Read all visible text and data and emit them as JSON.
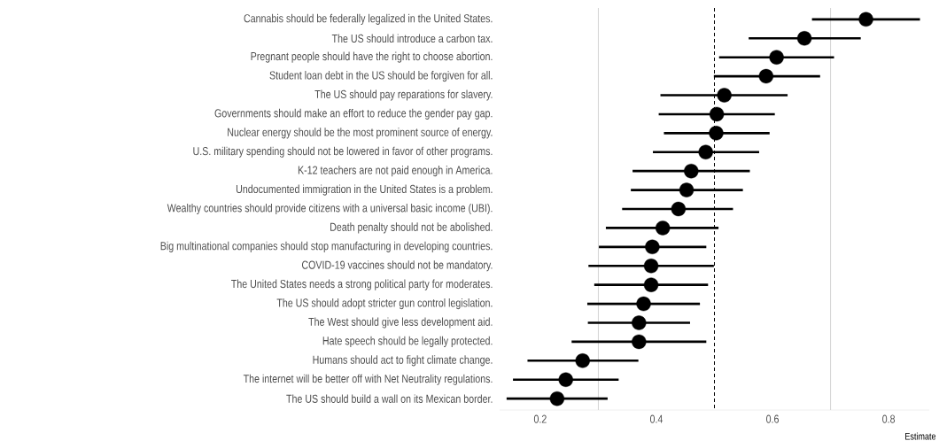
{
  "chart_data": {
    "type": "scatter",
    "orientation": "horizontal",
    "xlabel": "Estimate",
    "categories": [
      "Cannabis should be federally legalized in the United States.",
      "The US should introduce a carbon tax.",
      "Pregnant people should have the right to choose abortion.",
      "Student loan debt in the US should be forgiven for all.",
      "The US should pay reparations for slavery.",
      "Governments should make an effort to reduce the gender pay gap.",
      "Nuclear energy should be the most prominent source of energy.",
      "U.S. military spending should not be lowered in favor of other programs.",
      "K-12 teachers are not paid enough in America.",
      "Undocumented immigration in the United States is a problem.",
      "Wealthy countries should provide citizens with a universal basic income (UBI).",
      "Death penalty should not be abolished.",
      "Big multinational companies should stop manufacturing in developing countries.",
      "COVID-19 vaccines should not be mandatory.",
      "The United States needs a strong political party for moderates.",
      "The US should adopt stricter gun control legislation.",
      "The West should give less development aid.",
      "Hate speech should be legally protected.",
      "Humans should act to fight climate change.",
      "The internet will be better off with Net Neutrality regulations.",
      "The US should build a wall on its Mexican border."
    ],
    "values": [
      0.761,
      0.655,
      0.607,
      0.589,
      0.517,
      0.504,
      0.503,
      0.485,
      0.46,
      0.452,
      0.438,
      0.411,
      0.393,
      0.391,
      0.391,
      0.378,
      0.37,
      0.37,
      0.273,
      0.244,
      0.229
    ],
    "errors": [
      [
        0.668,
        0.854
      ],
      [
        0.559,
        0.752
      ],
      [
        0.508,
        0.706
      ],
      [
        0.499,
        0.682
      ],
      [
        0.407,
        0.626
      ],
      [
        0.404,
        0.604
      ],
      [
        0.413,
        0.595
      ],
      [
        0.394,
        0.577
      ],
      [
        0.359,
        0.561
      ],
      [
        0.356,
        0.549
      ],
      [
        0.341,
        0.532
      ],
      [
        0.313,
        0.507
      ],
      [
        0.301,
        0.486
      ],
      [
        0.283,
        0.499
      ],
      [
        0.293,
        0.489
      ],
      [
        0.281,
        0.475
      ],
      [
        0.282,
        0.458
      ],
      [
        0.254,
        0.486
      ],
      [
        0.178,
        0.369
      ],
      [
        0.153,
        0.335
      ],
      [
        0.142,
        0.316
      ]
    ],
    "color": "#000000",
    "marker": "circle",
    "grid": false,
    "xlim": [
      0.13,
      0.87
    ],
    "xticks": [
      0.2,
      0.4,
      0.6,
      0.8
    ],
    "ref_lines": [
      {
        "axis": "x",
        "value": 0.3,
        "color": "#d3d3d3",
        "line_style": "solid"
      },
      {
        "axis": "x",
        "value": 0.7,
        "color": "#d3d3d3",
        "line_style": "solid"
      },
      {
        "axis": "x",
        "value": 0.5,
        "color": "#000000",
        "line_style": "dashed"
      }
    ]
  }
}
